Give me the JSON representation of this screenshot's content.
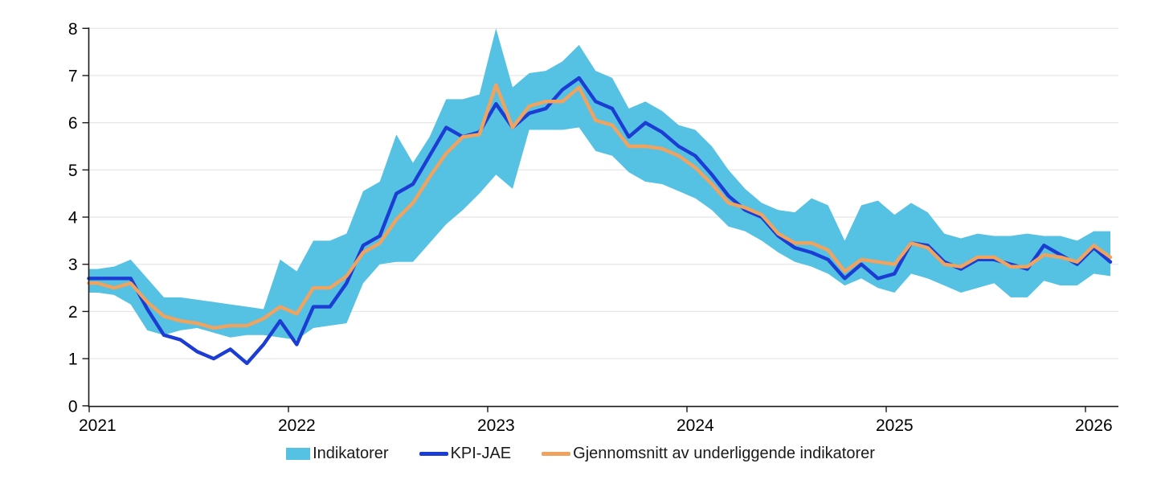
{
  "chart_data": {
    "type": "area+line",
    "title": "",
    "xlabel": "",
    "ylabel": "",
    "x_tick_labels": [
      "2021",
      "2022",
      "2023",
      "2024",
      "2025",
      "2026"
    ],
    "y_ticks": [
      "0",
      "1",
      "2",
      "3",
      "4",
      "5",
      "6",
      "7",
      "8"
    ],
    "ylim": [
      0,
      8
    ],
    "grid": "horizontal",
    "frequency": "monthly",
    "x_start": "2021-01",
    "x_end": "2026-02",
    "legend_position": "bottom-center",
    "colors": {
      "band": "#55C1E3",
      "kpi_line": "#1B3DD3",
      "mean_line": "#F0A35F",
      "gridline": "#E7E7E7",
      "axis": "#1A1A1A",
      "text": "#000000"
    },
    "series": [
      {
        "name": "Indikatorer",
        "type": "band",
        "color": "#55C1E3",
        "upper": [
          2.9,
          2.95,
          3.1,
          2.7,
          2.3,
          2.3,
          2.25,
          2.2,
          2.15,
          2.1,
          2.05,
          3.1,
          2.85,
          3.5,
          3.5,
          3.65,
          4.55,
          4.75,
          5.75,
          5.15,
          5.7,
          6.5,
          6.5,
          6.6,
          8.0,
          6.75,
          7.05,
          7.1,
          7.3,
          7.65,
          7.1,
          6.95,
          6.3,
          6.45,
          6.25,
          5.95,
          5.85,
          5.5,
          5.0,
          4.6,
          4.3,
          4.15,
          4.1,
          4.4,
          4.25,
          3.5,
          4.25,
          4.35,
          4.05,
          4.3,
          4.1,
          3.65,
          3.55,
          3.65,
          3.6,
          3.6,
          3.65,
          3.6,
          3.6,
          3.5,
          3.7,
          3.7
        ],
        "lower": [
          2.4,
          2.35,
          2.15,
          1.6,
          1.5,
          1.6,
          1.65,
          1.55,
          1.45,
          1.5,
          1.5,
          1.45,
          1.4,
          1.65,
          1.7,
          1.75,
          2.6,
          3.0,
          3.05,
          3.05,
          3.45,
          3.85,
          4.15,
          4.5,
          4.9,
          4.6,
          5.85,
          5.85,
          5.85,
          5.9,
          5.4,
          5.3,
          4.95,
          4.75,
          4.7,
          4.55,
          4.4,
          4.15,
          3.8,
          3.7,
          3.5,
          3.25,
          3.05,
          2.95,
          2.8,
          2.55,
          2.7,
          2.5,
          2.4,
          2.8,
          2.7,
          2.55,
          2.4,
          2.5,
          2.6,
          2.3,
          2.3,
          2.65,
          2.55,
          2.55,
          2.8,
          2.75
        ]
      },
      {
        "name": "KPI-JAE",
        "type": "line",
        "color": "#1B3DD3",
        "values": [
          2.7,
          2.7,
          2.7,
          2.05,
          1.5,
          1.4,
          1.15,
          1.0,
          1.2,
          0.9,
          1.3,
          1.8,
          1.3,
          2.1,
          2.1,
          2.6,
          3.4,
          3.6,
          4.5,
          4.7,
          5.3,
          5.9,
          5.7,
          5.8,
          6.4,
          5.9,
          6.2,
          6.3,
          6.7,
          6.95,
          6.45,
          6.3,
          5.7,
          6.0,
          5.8,
          5.5,
          5.3,
          4.9,
          4.45,
          4.15,
          4.0,
          3.6,
          3.35,
          3.25,
          3.1,
          2.7,
          3.0,
          2.7,
          2.8,
          3.45,
          3.4,
          3.05,
          2.9,
          3.1,
          3.1,
          3.0,
          2.9,
          3.4,
          3.2,
          3.0,
          3.35,
          3.05
        ]
      },
      {
        "name": "Gjennomsnitt av underliggende indikatorer",
        "type": "line",
        "color": "#F0A35F",
        "values": [
          2.6,
          2.5,
          2.6,
          2.2,
          1.9,
          1.8,
          1.75,
          1.65,
          1.7,
          1.7,
          1.85,
          2.1,
          1.95,
          2.5,
          2.5,
          2.75,
          3.25,
          3.45,
          3.95,
          4.3,
          4.85,
          5.35,
          5.7,
          5.75,
          6.8,
          5.9,
          6.35,
          6.45,
          6.45,
          6.75,
          6.05,
          5.95,
          5.5,
          5.5,
          5.45,
          5.3,
          5.05,
          4.7,
          4.3,
          4.2,
          4.05,
          3.65,
          3.45,
          3.45,
          3.3,
          2.85,
          3.1,
          3.05,
          3.0,
          3.45,
          3.35,
          3.0,
          2.95,
          3.15,
          3.15,
          2.95,
          2.95,
          3.2,
          3.15,
          3.05,
          3.4,
          3.15
        ]
      }
    ]
  },
  "legend": {
    "items": [
      {
        "label": "Indikatorer"
      },
      {
        "label": "KPI-JAE"
      },
      {
        "label": "Gjennomsnitt av underliggende indikatorer"
      }
    ]
  }
}
